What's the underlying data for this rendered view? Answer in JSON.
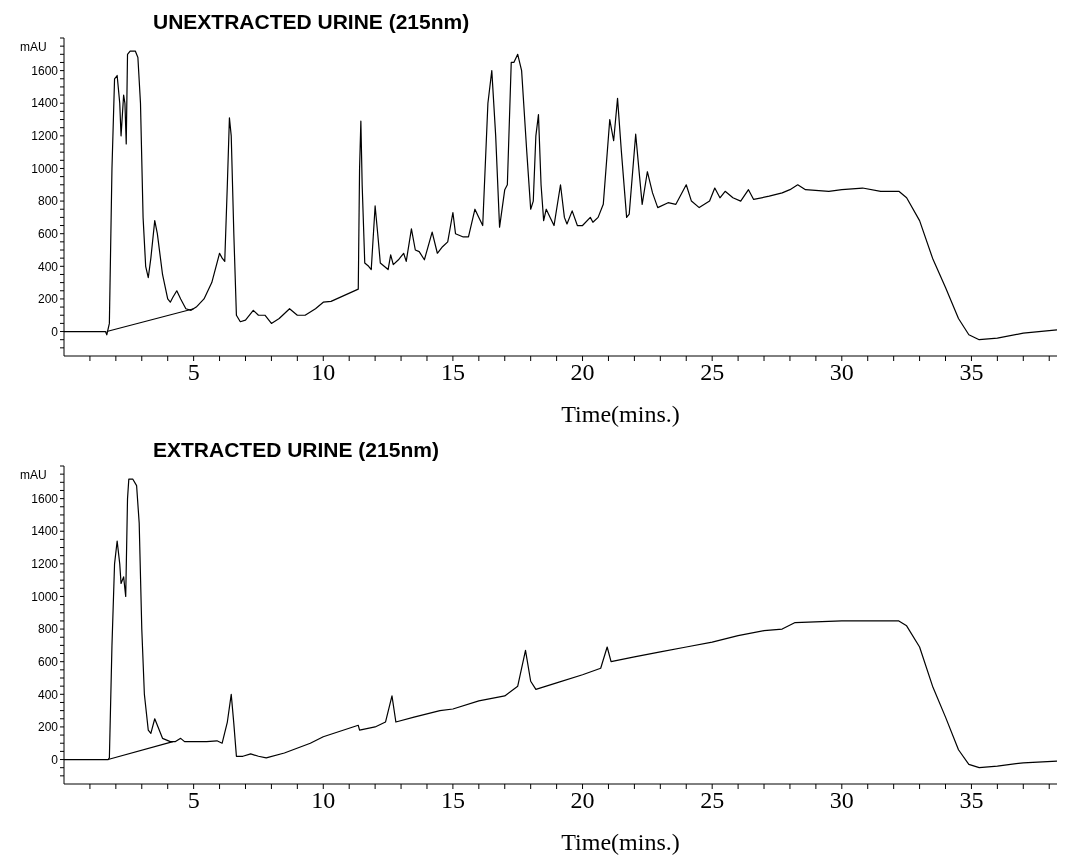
{
  "chart_data": [
    {
      "type": "line",
      "title": "UNEXTRACTED URINE (215nm)",
      "xlabel": "Time(mins.)",
      "ylabel": "mAU",
      "xlim": [
        0,
        38.3
      ],
      "ylim": [
        -150,
        1800
      ],
      "xticks": [
        {
          "value": 1,
          "label": null
        },
        {
          "value": 2,
          "label": null
        },
        {
          "value": 3,
          "label": null
        },
        {
          "value": 4,
          "label": null
        },
        5,
        {
          "value": 6,
          "label": null
        },
        {
          "value": 7,
          "label": null
        },
        {
          "value": 8,
          "label": null
        },
        {
          "value": 9,
          "label": null
        },
        10,
        {
          "value": 11,
          "label": null
        },
        {
          "value": 12,
          "label": null
        },
        {
          "value": 13,
          "label": null
        },
        {
          "value": 14,
          "label": null
        },
        15,
        {
          "value": 16,
          "label": null
        },
        {
          "value": 17,
          "label": null
        },
        {
          "value": 18,
          "label": null
        },
        {
          "value": 19,
          "label": null
        },
        20,
        {
          "value": 21,
          "label": null
        },
        {
          "value": 22,
          "label": null
        },
        {
          "value": 23,
          "label": null
        },
        {
          "value": 24,
          "label": null
        },
        25,
        {
          "value": 26,
          "label": null
        },
        {
          "value": 27,
          "label": null
        },
        {
          "value": 28,
          "label": null
        },
        {
          "value": 29,
          "label": null
        },
        30,
        {
          "value": 31,
          "label": null
        },
        {
          "value": 32,
          "label": null
        },
        {
          "value": 33,
          "label": null
        },
        {
          "value": 34,
          "label": null
        },
        35,
        {
          "value": 36,
          "label": null
        },
        {
          "value": 37,
          "label": null
        },
        {
          "value": 38,
          "label": null
        }
      ],
      "yticks": [
        {
          "value": -100,
          "label": null
        },
        {
          "value": -50,
          "label": null
        },
        0,
        {
          "value": 50,
          "label": null
        },
        {
          "value": 100,
          "label": null
        },
        {
          "value": 150,
          "label": null
        },
        200,
        {
          "value": 250,
          "label": null
        },
        {
          "value": 300,
          "label": null
        },
        {
          "value": 350,
          "label": null
        },
        400,
        {
          "value": 450,
          "label": null
        },
        {
          "value": 500,
          "label": null
        },
        {
          "value": 550,
          "label": null
        },
        600,
        {
          "value": 650,
          "label": null
        },
        {
          "value": 700,
          "label": null
        },
        {
          "value": 750,
          "label": null
        },
        800,
        {
          "value": 850,
          "label": null
        },
        {
          "value": 900,
          "label": null
        },
        {
          "value": 950,
          "label": null
        },
        1000,
        {
          "value": 1050,
          "label": null
        },
        {
          "value": 1100,
          "label": null
        },
        {
          "value": 1150,
          "label": null
        },
        1200,
        {
          "value": 1250,
          "label": null
        },
        {
          "value": 1300,
          "label": null
        },
        {
          "value": 1350,
          "label": null
        },
        1400,
        {
          "value": 1450,
          "label": null
        },
        {
          "value": 1500,
          "label": null
        },
        {
          "value": 1550,
          "label": null
        },
        1600,
        {
          "value": 1650,
          "label": null
        },
        {
          "value": 1700,
          "label": null
        },
        {
          "value": 1750,
          "label": null
        },
        {
          "value": 1800,
          "label": null
        }
      ],
      "series": [
        {
          "color": "#000000",
          "x": [
            0,
            1.6,
            1.65,
            1.75,
            1.85,
            1.95,
            2.05,
            2.15,
            2.2,
            2.3,
            2.35,
            2.4,
            2.45,
            2.55,
            2.75,
            2.85,
            2.95,
            3.05,
            3.15,
            3.25,
            3.35,
            3.5,
            3.6,
            3.8,
            4.0,
            4.1,
            4.2,
            4.35,
            4.5,
            4.7,
            4.9,
            5.1,
            5.4,
            5.7,
            6.0,
            6.1,
            6.2,
            6.3,
            6.38,
            6.45,
            6.55,
            6.65,
            6.8,
            7.0,
            7.3,
            7.5,
            7.75,
            8.0,
            8.3,
            8.7,
            9.0,
            9.3,
            9.7,
            10.0,
            10.3,
            11.35,
            11.4,
            11.45,
            11.5,
            11.6,
            11.75,
            11.85,
            12.0,
            12.1,
            12.2,
            12.5,
            12.6,
            12.7,
            12.9,
            13.1,
            13.2,
            13.4,
            13.55,
            13.7,
            13.9,
            14.2,
            14.4,
            14.6,
            14.8,
            15.0,
            15.1,
            15.4,
            15.6,
            15.85,
            16.0,
            16.15,
            16.35,
            16.5,
            16.65,
            16.8,
            17.0,
            17.1,
            17.25,
            17.35,
            17.5,
            17.65,
            17.85,
            18.0,
            18.1,
            18.2,
            18.3,
            18.4,
            18.5,
            18.6,
            18.75,
            18.9,
            19.15,
            19.3,
            19.4,
            19.6,
            19.8,
            20.0,
            20.3,
            20.4,
            20.6,
            20.8,
            21.05,
            21.2,
            21.35,
            21.5,
            21.7,
            21.8,
            22.05,
            22.2,
            22.3,
            22.5,
            22.7,
            22.9,
            23.3,
            23.6,
            24.0,
            24.2,
            24.5,
            24.9,
            25.1,
            25.3,
            25.5,
            25.8,
            26.1,
            26.4,
            26.6,
            27.2,
            27.7,
            28.0,
            28.3,
            28.6,
            29.5,
            30.0,
            30.8,
            31.5,
            32.2,
            32.5,
            33.0,
            33.5,
            34.0,
            34.5,
            34.9,
            35.3,
            36.0,
            37.0,
            38.3
          ],
          "values": [
            0,
            0,
            -20,
            50,
            1000,
            1550,
            1570,
            1400,
            1200,
            1450,
            1400,
            1150,
            1700,
            1720,
            1720,
            1680,
            1400,
            700,
            400,
            330,
            450,
            680,
            600,
            350,
            200,
            180,
            210,
            250,
            200,
            140,
            130,
            150,
            200,
            300,
            480,
            450,
            430,
            900,
            1310,
            1200,
            600,
            100,
            60,
            70,
            130,
            100,
            100,
            50,
            80,
            140,
            100,
            100,
            140,
            180,
            185,
            260,
            1000,
            1290,
            900,
            420,
            400,
            380,
            770,
            600,
            420,
            380,
            470,
            410,
            440,
            480,
            430,
            630,
            500,
            490,
            440,
            610,
            480,
            520,
            550,
            730,
            600,
            580,
            580,
            750,
            700,
            650,
            1400,
            1600,
            1200,
            640,
            870,
            900,
            1650,
            1650,
            1700,
            1600,
            1100,
            750,
            800,
            1200,
            1330,
            900,
            680,
            750,
            700,
            650,
            900,
            700,
            660,
            740,
            650,
            650,
            700,
            670,
            700,
            780,
            1300,
            1170,
            1430,
            1100,
            700,
            720,
            1210,
            950,
            780,
            980,
            850,
            760,
            790,
            780,
            900,
            800,
            760,
            800,
            880,
            820,
            860,
            820,
            800,
            870,
            810,
            830,
            850,
            870,
            900,
            870,
            860,
            870,
            880,
            860,
            860,
            820,
            680,
            450,
            270,
            80,
            -20,
            -50,
            -40,
            -10,
            10
          ]
        },
        {
          "type": "line",
          "color": "#000000",
          "x": [
            1.65,
            5.0
          ],
          "values": [
            0,
            140
          ]
        }
      ]
    },
    {
      "type": "line",
      "title": "EXTRACTED URINE (215nm)",
      "xlabel": "Time(mins.)",
      "ylabel": "mAU",
      "xlim": [
        0,
        38.3
      ],
      "ylim": [
        -150,
        1800
      ],
      "xticks": [
        {
          "value": 1,
          "label": null
        },
        {
          "value": 2,
          "label": null
        },
        {
          "value": 3,
          "label": null
        },
        {
          "value": 4,
          "label": null
        },
        5,
        {
          "value": 6,
          "label": null
        },
        {
          "value": 7,
          "label": null
        },
        {
          "value": 8,
          "label": null
        },
        {
          "value": 9,
          "label": null
        },
        10,
        {
          "value": 11,
          "label": null
        },
        {
          "value": 12,
          "label": null
        },
        {
          "value": 13,
          "label": null
        },
        {
          "value": 14,
          "label": null
        },
        15,
        {
          "value": 16,
          "label": null
        },
        {
          "value": 17,
          "label": null
        },
        {
          "value": 18,
          "label": null
        },
        {
          "value": 19,
          "label": null
        },
        20,
        {
          "value": 21,
          "label": null
        },
        {
          "value": 22,
          "label": null
        },
        {
          "value": 23,
          "label": null
        },
        {
          "value": 24,
          "label": null
        },
        25,
        {
          "value": 26,
          "label": null
        },
        {
          "value": 27,
          "label": null
        },
        {
          "value": 28,
          "label": null
        },
        {
          "value": 29,
          "label": null
        },
        30,
        {
          "value": 31,
          "label": null
        },
        {
          "value": 32,
          "label": null
        },
        {
          "value": 33,
          "label": null
        },
        {
          "value": 34,
          "label": null
        },
        35,
        {
          "value": 36,
          "label": null
        },
        {
          "value": 37,
          "label": null
        },
        {
          "value": 38,
          "label": null
        }
      ],
      "yticks": [
        {
          "value": -100,
          "label": null
        },
        {
          "value": -50,
          "label": null
        },
        0,
        {
          "value": 50,
          "label": null
        },
        {
          "value": 100,
          "label": null
        },
        {
          "value": 150,
          "label": null
        },
        200,
        {
          "value": 250,
          "label": null
        },
        {
          "value": 300,
          "label": null
        },
        {
          "value": 350,
          "label": null
        },
        400,
        {
          "value": 450,
          "label": null
        },
        {
          "value": 500,
          "label": null
        },
        {
          "value": 550,
          "label": null
        },
        600,
        {
          "value": 650,
          "label": null
        },
        {
          "value": 700,
          "label": null
        },
        {
          "value": 750,
          "label": null
        },
        800,
        {
          "value": 850,
          "label": null
        },
        {
          "value": 900,
          "label": null
        },
        {
          "value": 950,
          "label": null
        },
        1000,
        {
          "value": 1050,
          "label": null
        },
        {
          "value": 1100,
          "label": null
        },
        {
          "value": 1150,
          "label": null
        },
        1200,
        {
          "value": 1250,
          "label": null
        },
        {
          "value": 1300,
          "label": null
        },
        {
          "value": 1350,
          "label": null
        },
        1400,
        {
          "value": 1450,
          "label": null
        },
        {
          "value": 1500,
          "label": null
        },
        {
          "value": 1550,
          "label": null
        },
        1600,
        {
          "value": 1650,
          "label": null
        },
        {
          "value": 1700,
          "label": null
        },
        {
          "value": 1750,
          "label": null
        },
        {
          "value": 1800,
          "label": null
        }
      ],
      "series": [
        {
          "color": "#000000",
          "x": [
            0,
            1.7,
            1.75,
            1.85,
            1.95,
            2.05,
            2.15,
            2.2,
            2.3,
            2.38,
            2.45,
            2.5,
            2.65,
            2.8,
            2.9,
            3.0,
            3.1,
            3.25,
            3.35,
            3.5,
            3.6,
            3.8,
            4.1,
            4.3,
            4.5,
            4.65,
            5.0,
            5.5,
            5.9,
            6.1,
            6.3,
            6.45,
            6.55,
            6.65,
            6.9,
            7.2,
            7.5,
            7.8,
            8.5,
            9.5,
            10.0,
            11.35,
            11.4,
            12.0,
            12.4,
            12.65,
            12.8,
            13.5,
            14.5,
            15.0,
            16.0,
            17.0,
            17.5,
            17.8,
            18.0,
            18.2,
            19.0,
            20.0,
            20.7,
            20.95,
            21.1,
            22.0,
            23.0,
            24.0,
            25.0,
            26.0,
            27.0,
            27.7,
            28.2,
            30.0,
            32.2,
            32.5,
            33.0,
            33.5,
            34.0,
            34.5,
            34.9,
            35.3,
            36.0,
            37.0,
            38.3
          ],
          "values": [
            0,
            0,
            10,
            700,
            1200,
            1340,
            1200,
            1080,
            1120,
            1000,
            1600,
            1720,
            1720,
            1680,
            1450,
            800,
            400,
            180,
            160,
            250,
            210,
            130,
            110,
            110,
            130,
            110,
            110,
            110,
            115,
            100,
            230,
            400,
            220,
            20,
            20,
            35,
            20,
            10,
            40,
            100,
            140,
            210,
            180,
            200,
            230,
            390,
            230,
            260,
            300,
            310,
            360,
            390,
            450,
            670,
            480,
            430,
            470,
            520,
            560,
            690,
            600,
            630,
            660,
            690,
            720,
            760,
            790,
            800,
            840,
            850,
            850,
            820,
            690,
            450,
            260,
            60,
            -30,
            -50,
            -40,
            -20,
            -10
          ]
        },
        {
          "type": "line",
          "color": "#000000",
          "x": [
            1.7,
            4.2
          ],
          "values": [
            0,
            110
          ]
        }
      ]
    }
  ]
}
